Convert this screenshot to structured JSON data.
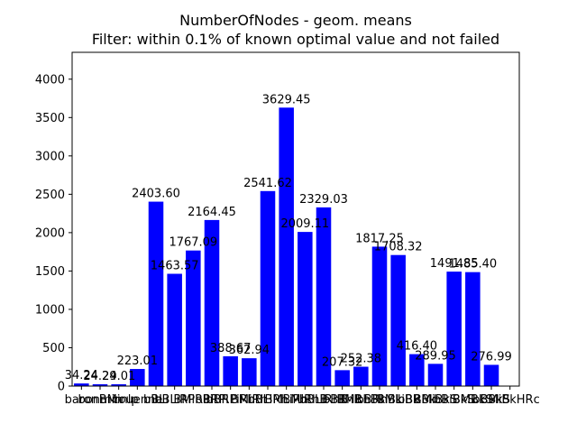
{
  "chart_data": {
    "type": "bar",
    "title": "NumberOfNodes - geom. means",
    "subtitle": "Filter: within 0.1% of known optimal value and not failed",
    "xlabel": "",
    "ylabel": "",
    "ylim": [
      0,
      4350
    ],
    "yticks": [
      0,
      500,
      1000,
      1500,
      2000,
      2500,
      3000,
      3500,
      4000
    ],
    "grid": false,
    "color": "#0000ff",
    "categories": [
      "baron",
      "bonmin",
      "BMinlp",
      "couenne",
      "bBLi",
      "bBLiRP",
      "BMiRPi",
      "bBRPi",
      "bBRPiRh",
      "BMiRh",
      "bBLiRh",
      "BMLiRh",
      "BMiRhB",
      "bBLiRhB",
      "bBRhB",
      "BMRhBk",
      "bBRhBk",
      "BMLiBk",
      "bBRBk",
      "BMiBkS",
      "bBiBkS",
      "BMBkS",
      "bBBkS",
      "BMiBkHRc"
    ],
    "values": [
      34.24,
      24.29,
      24.01,
      223.01,
      2403.6,
      1463.57,
      1767.09,
      2164.45,
      388.67,
      362.94,
      2541.62,
      3629.45,
      2009.11,
      2329.03,
      207.32,
      252.38,
      1817.25,
      1708.32,
      416.4,
      289.95,
      1491.85,
      1485.4,
      276.99,
      null
    ],
    "labels": [
      "34.24",
      "24.29",
      "24.01",
      "223.01",
      "2403.60",
      "1463.57",
      "1767.09",
      "2164.45",
      "388.67",
      "362.94",
      "2541.62",
      "3629.45",
      "2009.11",
      "2329.03",
      "207.32",
      "252.38",
      "1817.25",
      "1708.32",
      "416.40",
      "289.95",
      "1491.85",
      "1485.40",
      "276.99",
      ""
    ]
  }
}
